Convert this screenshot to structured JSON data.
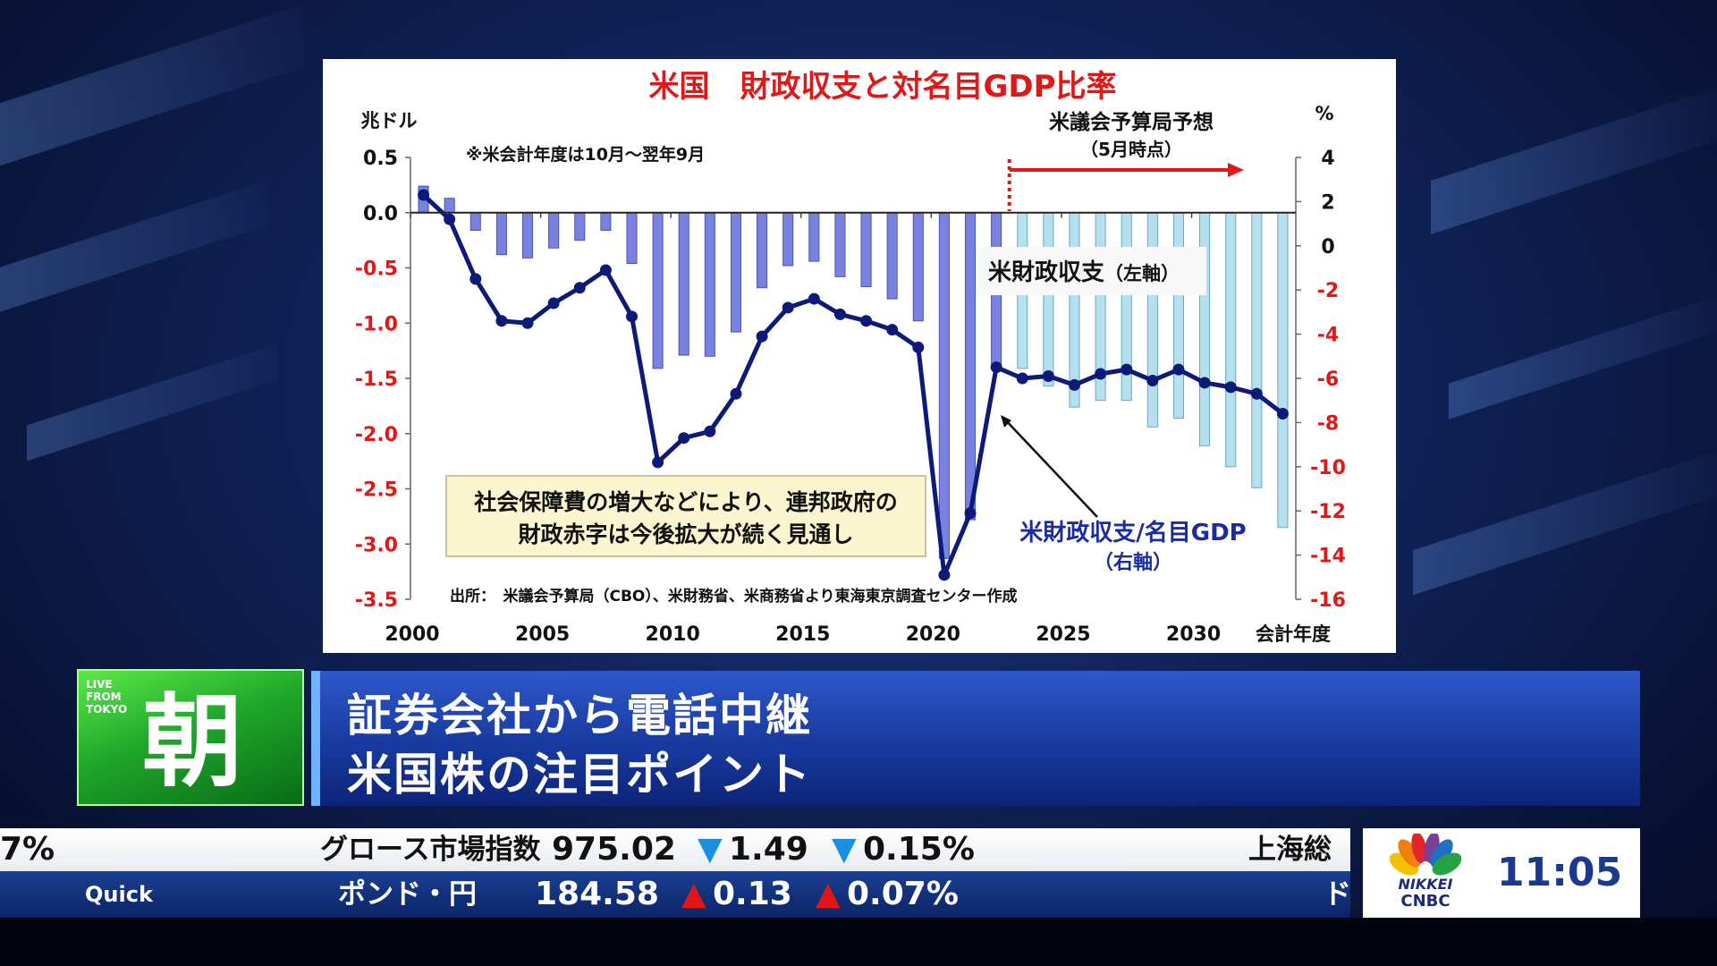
{
  "chart_data": {
    "type": "bar+line",
    "title": "米国　財政収支と対名目GDP比率",
    "left_unit": "兆ドル",
    "right_unit": "%",
    "note": "※米会計年度は10月～翌年9月",
    "forecast_label_line1": "米議会予算局予想",
    "forecast_label_line2": "（5月時点）",
    "forecast_start_year": 2022.5,
    "xlabel": "会計年度",
    "x_ticks": [
      "2000",
      "2005",
      "2010",
      "2015",
      "2020",
      "2025",
      "2030"
    ],
    "left_ticks": [
      "0.5",
      "0.0",
      "-0.5",
      "-1.0",
      "-1.5",
      "-2.0",
      "-2.5",
      "-3.0",
      "-3.5"
    ],
    "right_ticks": [
      "4",
      "2",
      "0",
      "-2",
      "-4",
      "-6",
      "-8",
      "-10",
      "-12",
      "-14",
      "-16"
    ],
    "ylim_left": [
      -3.5,
      0.5
    ],
    "ylim_right": [
      -16,
      4
    ],
    "years": [
      2000,
      2001,
      2002,
      2003,
      2004,
      2005,
      2006,
      2007,
      2008,
      2009,
      2010,
      2011,
      2012,
      2013,
      2014,
      2015,
      2016,
      2017,
      2018,
      2019,
      2020,
      2021,
      2022,
      2023,
      2024,
      2025,
      2026,
      2027,
      2028,
      2029,
      2030,
      2031,
      2032,
      2033
    ],
    "series": [
      {
        "name": "米財政収支（左軸）",
        "type": "bar",
        "axis": "left",
        "values": [
          0.24,
          0.13,
          -0.16,
          -0.38,
          -0.41,
          -0.32,
          -0.25,
          -0.16,
          -0.46,
          -1.41,
          -1.29,
          -1.3,
          -1.08,
          -0.68,
          -0.48,
          -0.44,
          -0.58,
          -0.67,
          -0.78,
          -0.98,
          -3.13,
          -2.78,
          -1.38,
          -1.41,
          -1.57,
          -1.76,
          -1.7,
          -1.7,
          -1.94,
          -1.86,
          -2.11,
          -2.3,
          -2.49,
          -2.85
        ]
      },
      {
        "name": "米財政収支/名目GDP（右軸）",
        "type": "line",
        "axis": "right",
        "values": [
          2.3,
          1.2,
          -1.5,
          -3.4,
          -3.5,
          -2.6,
          -1.9,
          -1.1,
          -3.2,
          -9.8,
          -8.7,
          -8.4,
          -6.7,
          -4.1,
          -2.8,
          -2.4,
          -3.1,
          -3.4,
          -3.8,
          -4.6,
          -14.9,
          -12.1,
          -5.5,
          -6.0,
          -5.9,
          -6.3,
          -5.8,
          -5.6,
          -6.1,
          -5.6,
          -6.2,
          -6.4,
          -6.7,
          -7.6
        ]
      }
    ],
    "bar_label": "米財政収支",
    "bar_label_suffix": "（左軸）",
    "line_label": "米財政収支/名目GDP",
    "line_label_suffix": "（右軸）",
    "callout_line1": "社会保障費の増大などにより、連邦政府の",
    "callout_line2": "財政赤字は今後拡大が続く見通し",
    "source": "出所：　米議会予算局（CBO）、米財務省、米商務省より東海東京調査センター作成",
    "colors": {
      "title": "#e01818",
      "left_axis": "#e01818",
      "bar_actual": "#7a82e0",
      "bar_forecast": "#b4e0ef",
      "line": "#0d1a78",
      "line_label": "#1b2ba0",
      "callout_bg": "#fbf6cf"
    }
  },
  "caption": {
    "badge": "LIVE FROM TOKYO",
    "program_char": "朝",
    "line1": "証券会社から電話中継",
    "line2": "米国株の注目ポイント"
  },
  "ticker": {
    "top_prefix": "7%",
    "top_name": "グロース市場指数",
    "top_value": "975.02",
    "top_change_mark": "▼",
    "top_change": "1.49",
    "top_pct_mark": "▼",
    "top_pct": "0.15%",
    "top_next": "上海総",
    "bottom_source": "Quick",
    "bottom_name": "ポンド・円",
    "bottom_value": "184.58",
    "bottom_change_mark": "▲",
    "bottom_change": "0.13",
    "bottom_pct_mark": "▲",
    "bottom_pct": "0.07%",
    "bottom_next": "ド"
  },
  "logo": {
    "brand_line1": "NIKKEI",
    "brand_line2": "CNBC",
    "time": "11:05"
  }
}
